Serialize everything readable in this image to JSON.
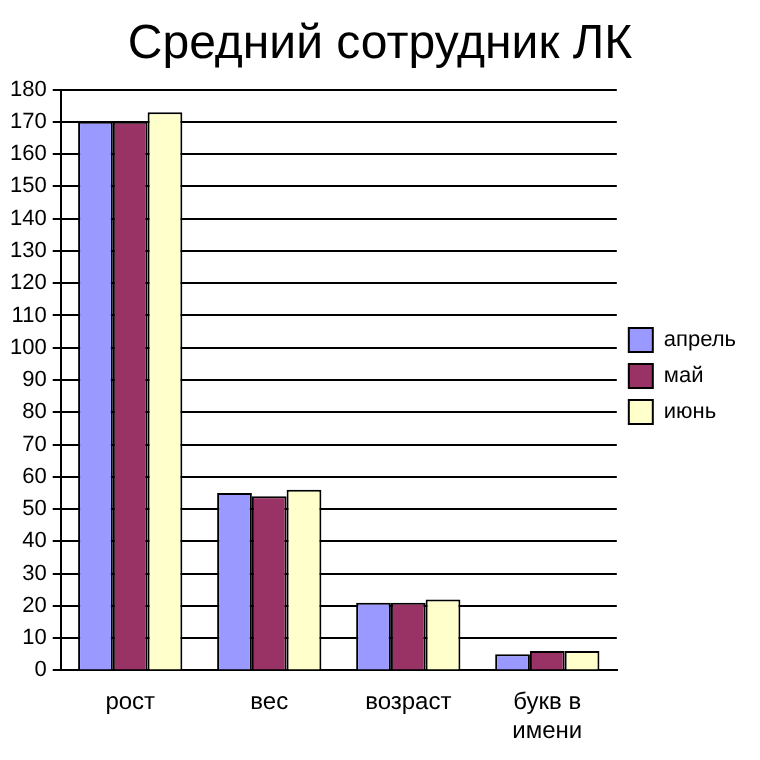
{
  "chart_data": {
    "type": "bar",
    "title": "Средний сотрудник ЛК",
    "categories": [
      "рост",
      "вес",
      "возраст",
      "букв в имени"
    ],
    "series": [
      {
        "name": "апрель",
        "color": "#9999ff",
        "values": [
          170,
          55,
          21,
          5
        ]
      },
      {
        "name": "май",
        "color": "#993366",
        "values": [
          170,
          54,
          21,
          6
        ]
      },
      {
        "name": "июнь",
        "color": "#ffffcc",
        "values": [
          173,
          56,
          22,
          6
        ]
      }
    ],
    "ylim": [
      0,
      180
    ],
    "yticks": [
      0,
      10,
      20,
      30,
      40,
      50,
      60,
      70,
      80,
      90,
      100,
      110,
      120,
      130,
      140,
      150,
      160,
      170,
      180
    ],
    "grid": "y",
    "legend": "right"
  }
}
